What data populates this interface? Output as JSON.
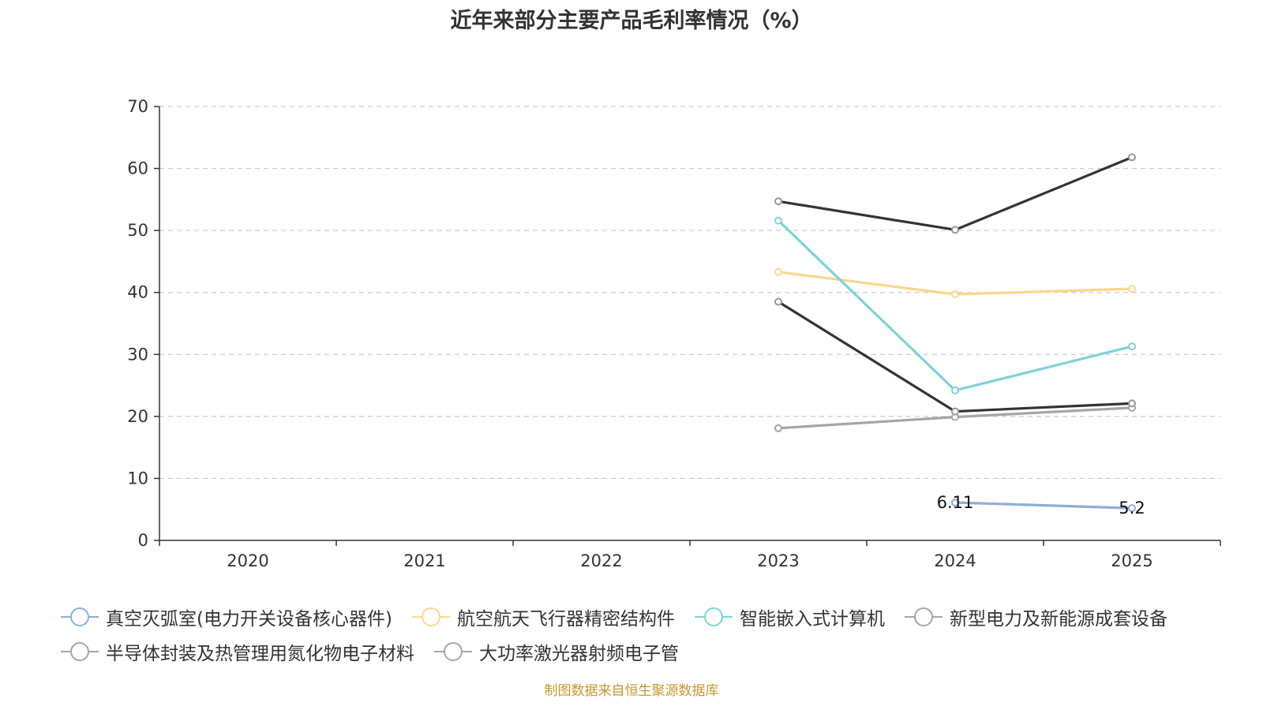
{
  "chart_data": {
    "type": "line",
    "title": "近年来部分主要产品毛利率情况（%）",
    "source": "制图数据来自恒生聚源数据库",
    "xlabel": "",
    "ylabel": "",
    "categories": [
      "2020",
      "2021",
      "2022",
      "2023",
      "2024",
      "2025"
    ],
    "ylim": [
      0,
      70
    ],
    "yticks": [
      0,
      10,
      20,
      30,
      40,
      50,
      60,
      70
    ],
    "grid": true,
    "legend_position": "bottom",
    "series": [
      {
        "name": "真空灭弧室(电力开关设备核心器件)",
        "color": "#8eaed8",
        "values": [
          null,
          null,
          null,
          null,
          6.11,
          5.2
        ],
        "labels": [
          null,
          null,
          null,
          null,
          "6.11",
          "5.2"
        ]
      },
      {
        "name": "航空航天飞行器精密结构件",
        "color": "#f9d78d",
        "values": [
          null,
          null,
          null,
          43.3,
          39.7,
          40.6
        ],
        "labels": []
      },
      {
        "name": "智能嵌入式计算机",
        "color": "#7dd3d7",
        "values": [
          null,
          null,
          null,
          51.6,
          24.2,
          31.3
        ],
        "labels": []
      },
      {
        "name": "新型电力及新能源成套设备",
        "color": "#a6a6a6",
        "values": [
          null,
          null,
          null,
          18.1,
          19.9,
          21.4
        ],
        "labels": []
      },
      {
        "name": "半导体封装及热管理用氮化物电子材料",
        "color": "#333333",
        "legend_color": "#a6a6a6",
        "values": [
          null,
          null,
          null,
          38.5,
          20.8,
          22.1
        ],
        "labels": []
      },
      {
        "name": "大功率激光器射频电子管",
        "color": "#333333",
        "legend_color": "#a6a6a6",
        "values": [
          null,
          null,
          null,
          54.7,
          50.1,
          61.8
        ],
        "labels": []
      }
    ]
  }
}
